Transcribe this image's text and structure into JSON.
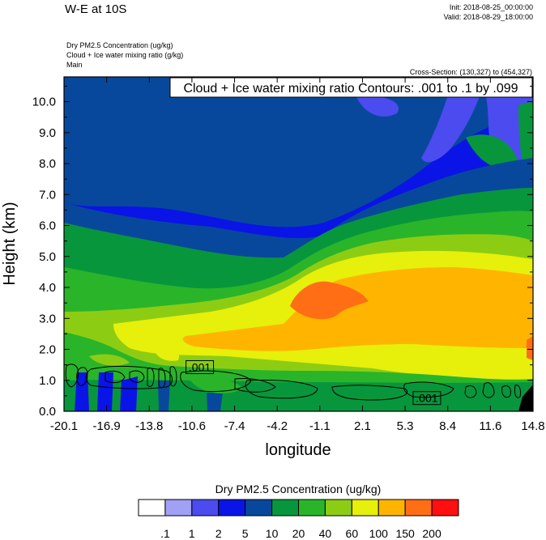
{
  "header": {
    "title": "W-E at 10S",
    "init": "Init: 2018-08-25_00:00:00",
    "valid": "Valid: 2018-08-29_18:00:00",
    "field1": "Dry PM2.5 Concentration   (ug/kg)",
    "field2": "Cloud + Ice water mixing ratio   (g/kg)",
    "field3": "Main",
    "cross_section": "Cross-Section: (130,327) to (454,327)"
  },
  "chart_data": {
    "type": "heatmap",
    "contour_title": "Cloud + Ice water mixing ratio Contours: .001 to .1 by .099",
    "xlabel": "longitude",
    "ylabel": "Height (km)",
    "x_ticks": [
      "-20.1",
      "-16.9",
      "-13.8",
      "-10.6",
      "-7.4",
      "-4.2",
      "-1.1",
      "2.1",
      "5.3",
      "8.4",
      "11.6",
      "14.8"
    ],
    "y_ticks": [
      "0.0",
      "1.0",
      "2.0",
      "3.0",
      "4.0",
      "5.0",
      "6.0",
      "7.0",
      "8.0",
      "9.0",
      "10.0"
    ],
    "xlim": [
      -20.1,
      14.8
    ],
    "ylim": [
      0,
      10.8
    ],
    "contour_labels": [
      {
        "text": ".001",
        "x": -10.0,
        "y": 1.4
      },
      {
        "text": ".001",
        "x": 6.9,
        "y": 0.4
      }
    ],
    "colorbar": {
      "title": "Dry PM2.5 Concentration  (ug/kg)",
      "labels": [
        ".1",
        "1",
        "2",
        "5",
        "10",
        "20",
        "40",
        "60",
        "100",
        "150",
        "200"
      ],
      "colors": [
        "#ffffff",
        "#a0a0f5",
        "#4b4bf0",
        "#0a14e6",
        "#08489c",
        "#08963c",
        "#2ab42a",
        "#8ccd14",
        "#e6f00a",
        "#ffb400",
        "#ff6e14",
        "#ff0f0f"
      ]
    }
  }
}
